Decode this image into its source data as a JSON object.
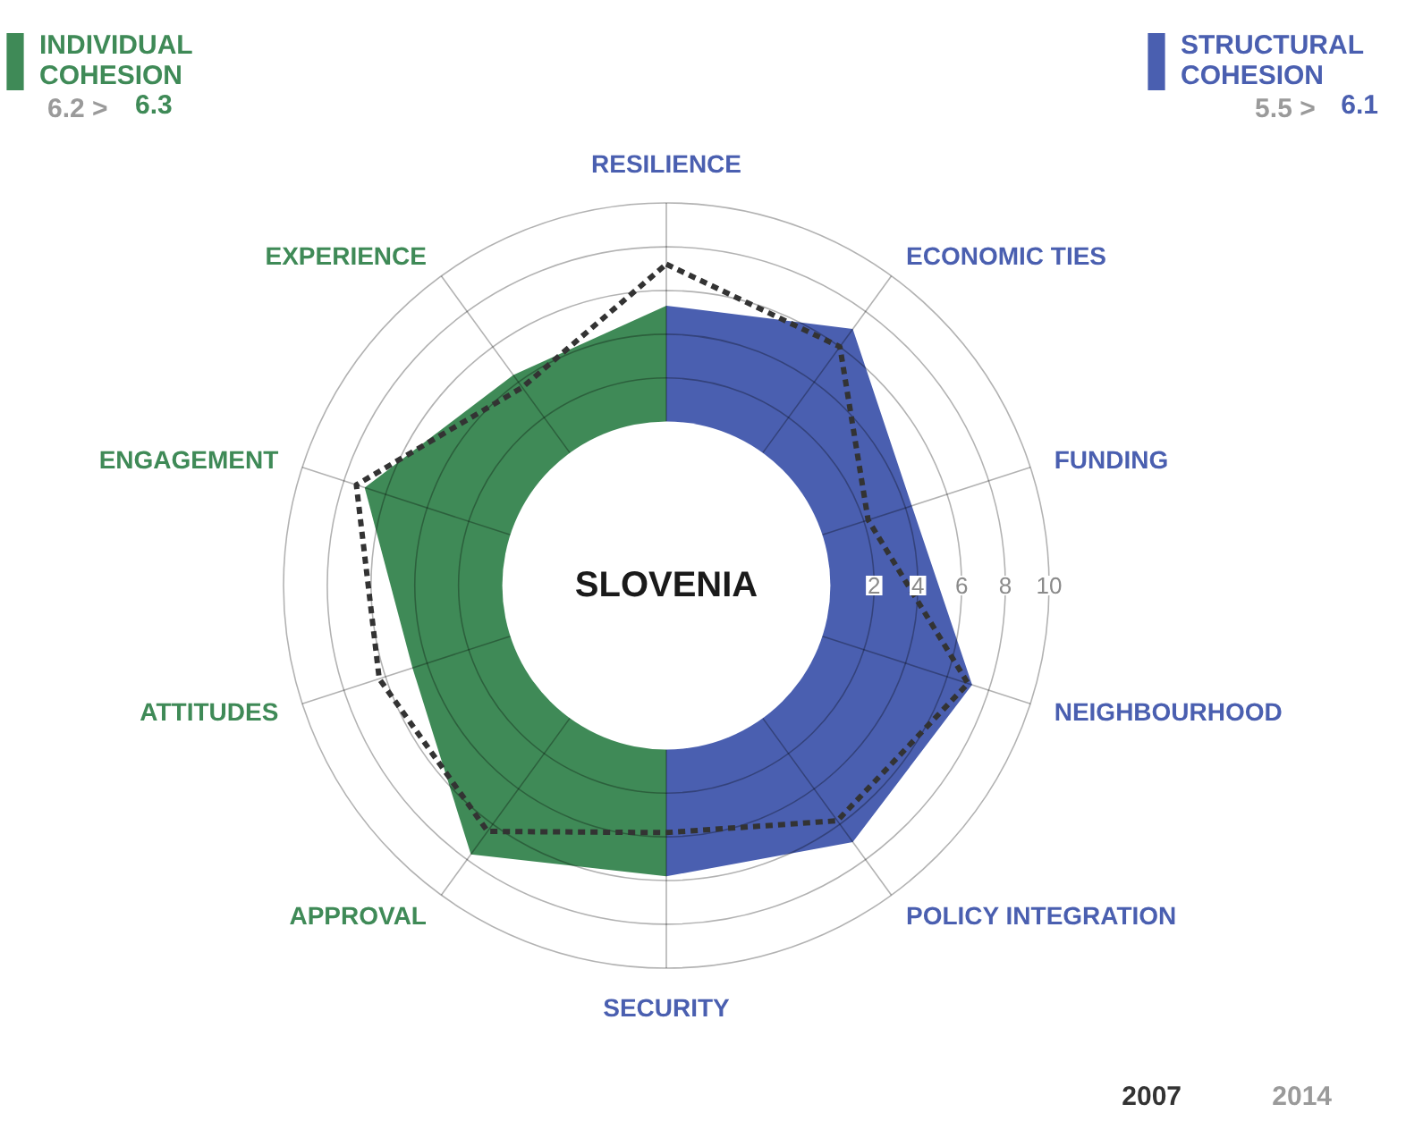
{
  "chart_data": {
    "type": "radar",
    "title": "SLOVENIA",
    "categories": [
      "RESILIENCE",
      "ECONOMIC TIES",
      "FUNDING",
      "NEIGHBOURHOOD",
      "POLICY INTEGRATION",
      "SECURITY",
      "APPROVAL",
      "ATTITUDES",
      "ENGAGEMENT",
      "EXPERIENCE"
    ],
    "series": [
      {
        "name": "STRUCTURAL COHESION",
        "type": "area",
        "color": "#4a5fb0",
        "values": [
          5.3,
          7.0,
          4.3,
          7.2,
          7.0,
          5.8,
          null,
          null,
          null,
          null
        ]
      },
      {
        "name": "INDIVIDUAL COHESION",
        "type": "area",
        "color": "#3f8a57",
        "values": [
          5.3,
          null,
          null,
          null,
          null,
          5.8,
          7.7,
          4.7,
          7.0,
          4.4
        ]
      },
      {
        "name": "2007",
        "color": "#333333",
        "line_style": "dashed",
        "values": [
          7.2,
          6.0,
          2.2,
          7.0,
          5.8,
          3.8,
          6.4,
          6.3,
          7.4,
          3.7
        ]
      }
    ],
    "ylim": [
      -7.5,
      10
    ],
    "yticks": [
      2,
      4,
      6,
      8,
      10
    ],
    "grid": true,
    "legend": "top",
    "annotations": [
      "6.2 > 6.3",
      "5.5 > 6.1",
      "2014"
    ]
  }
}
